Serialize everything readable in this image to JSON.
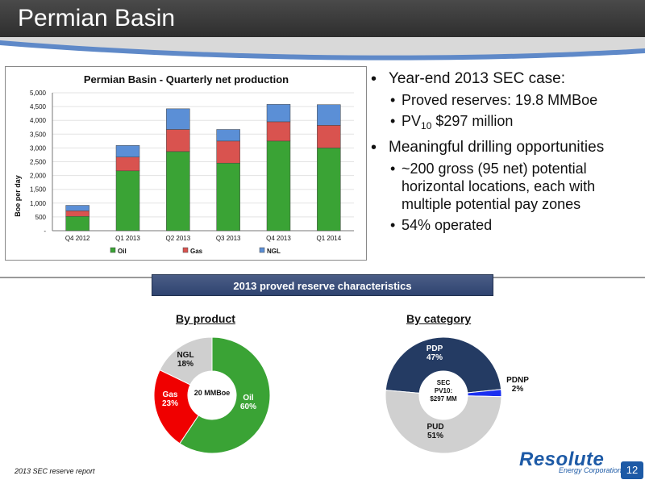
{
  "header": {
    "title": "Permian Basin"
  },
  "bullets": {
    "b1": "Year-end 2013 SEC case:",
    "b1a": "Proved reserves:  19.8 MMBoe",
    "b1b_prefix": "PV",
    "b1b_sub": "10",
    "b1b_suffix": " $297 million",
    "b2": "Meaningful drilling opportunities",
    "b2a": "~200 gross (95 net) potential horizontal locations, each with multiple potential pay zones",
    "b2b": "54% operated"
  },
  "reserve_banner": "2013 proved reserve characteristics",
  "footnote": "2013 SEC reserve report",
  "logo": {
    "main": "Resolute",
    "sub": "Energy Corporation"
  },
  "page_number": "12",
  "colors": {
    "oil": "#3aa335",
    "gas": "#d9534f",
    "ngl": "#5b8fd6",
    "pdp": "#243b63",
    "pdnp": "#1a2ff0",
    "pud": "#d0d0d0"
  },
  "chart_data": [
    {
      "type": "bar",
      "stacked": true,
      "title": "Permian Basin - Quarterly net production",
      "ylabel": "Boe per day",
      "xlabel": "",
      "ylim": [
        0,
        5000
      ],
      "yticks": [
        0,
        500,
        1000,
        1500,
        2000,
        2500,
        3000,
        3500,
        4000,
        4500,
        5000
      ],
      "ytick_labels": [
        "-",
        "500",
        "1,000",
        "1,500",
        "2,000",
        "2,500",
        "3,000",
        "3,500",
        "4,000",
        "4,500",
        "5,000"
      ],
      "categories": [
        "Q4 2012",
        "Q1 2013",
        "Q2 2013",
        "Q3 2013",
        "Q4 2013",
        "Q1 2014"
      ],
      "series": [
        {
          "name": "Oil",
          "values": [
            520,
            2170,
            2870,
            2450,
            3250,
            3000
          ]
        },
        {
          "name": "Gas",
          "values": [
            200,
            500,
            800,
            800,
            700,
            820
          ]
        },
        {
          "name": "NGL",
          "values": [
            200,
            420,
            750,
            420,
            630,
            750
          ]
        }
      ],
      "legend": "bottom"
    },
    {
      "type": "pie",
      "title": "By product",
      "center_label": "20 MMBoe",
      "slices": [
        {
          "name": "Oil",
          "value": 60,
          "label": "Oil",
          "pct": "60%"
        },
        {
          "name": "Gas",
          "value": 23,
          "label": "Gas",
          "pct": "23%"
        },
        {
          "name": "NGL",
          "value": 18,
          "label": "NGL",
          "pct": "18%"
        }
      ]
    },
    {
      "type": "pie",
      "title": "By category",
      "center_label": [
        "SEC",
        "PV10:",
        "$297 MM"
      ],
      "slices": [
        {
          "name": "PDP",
          "value": 47,
          "label": "PDP",
          "pct": "47%"
        },
        {
          "name": "PDNP",
          "value": 2,
          "label": "PDNP",
          "pct": "2%"
        },
        {
          "name": "PUD",
          "value": 51,
          "label": "PUD",
          "pct": "51%"
        }
      ]
    }
  ]
}
